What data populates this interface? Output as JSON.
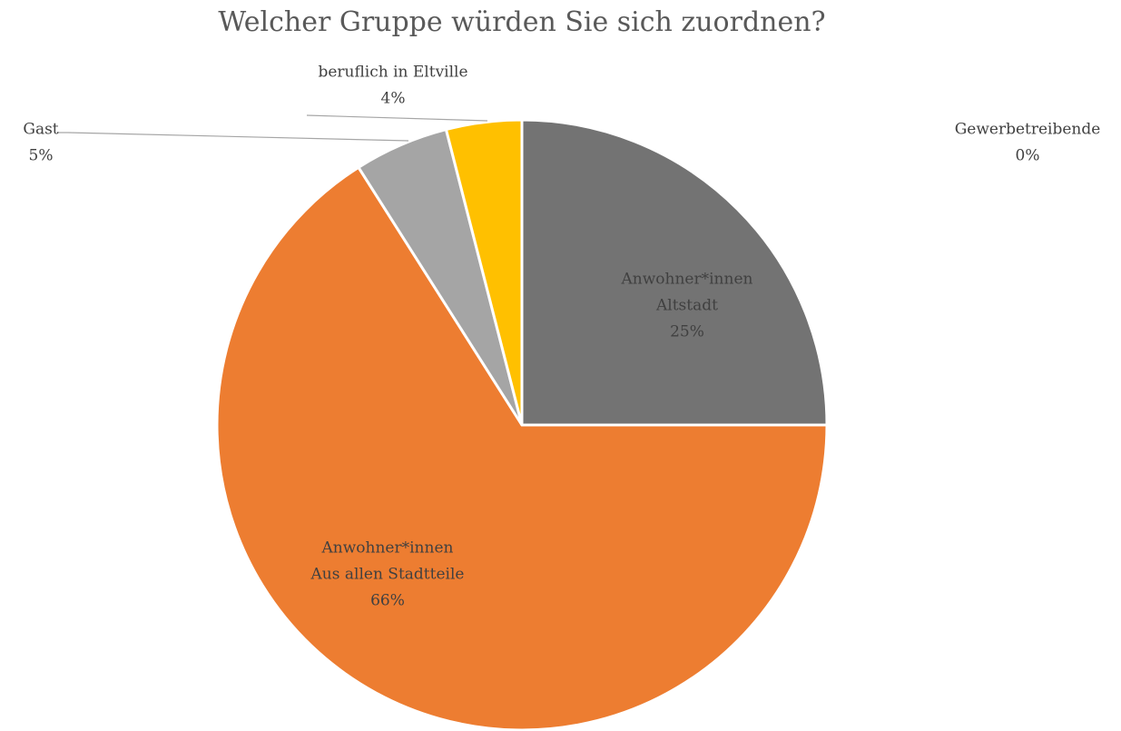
{
  "chart_data": {
    "type": "pie",
    "title": "Welcher Gruppe würden Sie sich zuordnen?",
    "categories": [
      [
        "Anwohner*innen",
        "Altstadt"
      ],
      [
        "Gewerbetreibende"
      ],
      [
        "Anwohner*innen",
        "Aus allen Stadtteile"
      ],
      [
        "Gast"
      ],
      [
        "beruflich in Eltville"
      ]
    ],
    "values": [
      25,
      0,
      66,
      5,
      4
    ],
    "value_labels": [
      "25%",
      "0%",
      "66%",
      "5%",
      "4%"
    ],
    "colors": [
      "#737373",
      "#5b9bd5",
      "#ed7d31",
      "#a5a5a5",
      "#ffc000"
    ]
  }
}
